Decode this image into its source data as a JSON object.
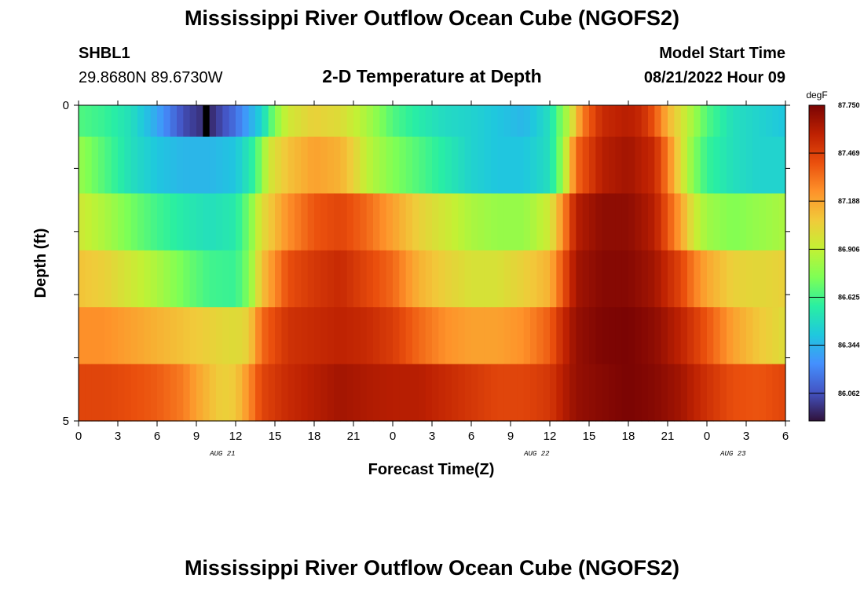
{
  "page": {
    "title": "Mississippi River Outflow Ocean Cube (NGOFS2)",
    "title_repeat": "Mississippi River Outflow Ocean Cube (NGOFS2)",
    "station": {
      "id": "SHBL1",
      "coords": "29.8680N  89.6730W"
    },
    "subtitle": "2-D Temperature at Depth",
    "model_start": {
      "label": "Model Start Time",
      "value": "08/21/2022 Hour 09"
    }
  },
  "chart_data": {
    "type": "heatmap",
    "title": "2-D Temperature at Depth",
    "xlabel": "Forecast Time(Z)",
    "ylabel": "Depth (ft)",
    "x_tick_labels": [
      "0",
      "3",
      "6",
      "9",
      "12",
      "15",
      "18",
      "21",
      "0",
      "3",
      "6",
      "9",
      "12",
      "15",
      "18",
      "21",
      "0",
      "3",
      "6"
    ],
    "x_tick_hours": [
      0,
      3,
      6,
      9,
      12,
      15,
      18,
      21,
      24,
      27,
      30,
      33,
      36,
      39,
      42,
      45,
      48,
      51,
      54
    ],
    "date_labels": [
      {
        "text": "AUG 21",
        "hour": 11
      },
      {
        "text": "AUG 22",
        "hour": 35
      },
      {
        "text": "AUG 23",
        "hour": 50
      }
    ],
    "xlim": [
      0,
      54
    ],
    "y_tick_labels": [
      "0",
      "5"
    ],
    "ylim": [
      0,
      5
    ],
    "colorbar": {
      "unit": "degF",
      "tick_labels": [
        "87.750",
        "87.469",
        "87.188",
        "86.906",
        "86.625",
        "86.344",
        "86.062"
      ],
      "range": [
        85.9,
        87.75
      ],
      "colors": [
        "#30123b",
        "#4454c4",
        "#4490fe",
        "#1fc8de",
        "#29efa2",
        "#7eff55",
        "#c3f134",
        "#f1ca3a",
        "#fe922a",
        "#ea4f0d",
        "#be2102",
        "#7a0403"
      ]
    },
    "depth_layers": [
      {
        "knots": [
          [
            0,
            86.65
          ],
          [
            2,
            86.6
          ],
          [
            4,
            86.5
          ],
          [
            6,
            86.3
          ],
          [
            8,
            86.05
          ],
          [
            10,
            85.95
          ],
          [
            12,
            86.15
          ],
          [
            14,
            86.45
          ],
          [
            15,
            86.75
          ],
          [
            16,
            86.95
          ],
          [
            18,
            87.05
          ],
          [
            20,
            87.0
          ],
          [
            22,
            86.85
          ],
          [
            24,
            86.65
          ],
          [
            26,
            86.55
          ],
          [
            28,
            86.48
          ],
          [
            30,
            86.45
          ],
          [
            32,
            86.4
          ],
          [
            34,
            86.35
          ],
          [
            36,
            86.5
          ],
          [
            37.5,
            86.9
          ],
          [
            38.5,
            87.3
          ],
          [
            40,
            87.55
          ],
          [
            42,
            87.6
          ],
          [
            43,
            87.55
          ],
          [
            44,
            87.4
          ],
          [
            45,
            87.15
          ],
          [
            46.5,
            86.9
          ],
          [
            48,
            86.65
          ],
          [
            50,
            86.5
          ],
          [
            52,
            86.45
          ],
          [
            54,
            86.4
          ]
        ],
        "notch": {
          "hour": 10,
          "value": "missing"
        }
      },
      {
        "knots": [
          [
            0,
            86.8
          ],
          [
            2,
            86.65
          ],
          [
            4,
            86.5
          ],
          [
            6,
            86.4
          ],
          [
            8,
            86.35
          ],
          [
            10,
            86.35
          ],
          [
            12,
            86.4
          ],
          [
            13.5,
            86.6
          ],
          [
            14.5,
            86.95
          ],
          [
            16,
            87.1
          ],
          [
            18,
            87.2
          ],
          [
            20,
            87.15
          ],
          [
            21,
            87.05
          ],
          [
            22,
            86.9
          ],
          [
            24,
            86.75
          ],
          [
            26,
            86.65
          ],
          [
            28,
            86.55
          ],
          [
            30,
            86.45
          ],
          [
            32,
            86.4
          ],
          [
            34,
            86.4
          ],
          [
            36,
            86.5
          ],
          [
            37,
            86.8
          ],
          [
            38,
            87.35
          ],
          [
            40,
            87.6
          ],
          [
            42,
            87.65
          ],
          [
            44,
            87.55
          ],
          [
            45,
            87.3
          ],
          [
            46,
            87.0
          ],
          [
            47,
            86.75
          ],
          [
            48,
            86.6
          ],
          [
            50,
            86.5
          ],
          [
            52,
            86.45
          ],
          [
            54,
            86.45
          ]
        ]
      },
      {
        "knots": [
          [
            0,
            86.95
          ],
          [
            2,
            86.85
          ],
          [
            4,
            86.72
          ],
          [
            6,
            86.62
          ],
          [
            8,
            86.55
          ],
          [
            10,
            86.5
          ],
          [
            12,
            86.55
          ],
          [
            13,
            86.72
          ],
          [
            14,
            87.0
          ],
          [
            16,
            87.25
          ],
          [
            18,
            87.4
          ],
          [
            20,
            87.45
          ],
          [
            22,
            87.35
          ],
          [
            24,
            87.2
          ],
          [
            26,
            87.05
          ],
          [
            28,
            86.95
          ],
          [
            30,
            86.85
          ],
          [
            32,
            86.8
          ],
          [
            34,
            86.8
          ],
          [
            36,
            86.95
          ],
          [
            37,
            87.25
          ],
          [
            38,
            87.6
          ],
          [
            40,
            87.7
          ],
          [
            42,
            87.7
          ],
          [
            44,
            87.6
          ],
          [
            45,
            87.4
          ],
          [
            46,
            87.2
          ],
          [
            47,
            86.95
          ],
          [
            48,
            86.82
          ],
          [
            50,
            86.75
          ],
          [
            52,
            86.8
          ],
          [
            54,
            86.85
          ]
        ]
      },
      {
        "knots": [
          [
            0,
            87.1
          ],
          [
            2,
            87.05
          ],
          [
            4,
            86.95
          ],
          [
            6,
            86.85
          ],
          [
            8,
            86.72
          ],
          [
            10,
            86.62
          ],
          [
            12,
            86.6
          ],
          [
            13,
            86.75
          ],
          [
            14,
            87.1
          ],
          [
            16,
            87.42
          ],
          [
            18,
            87.5
          ],
          [
            20,
            87.55
          ],
          [
            22,
            87.45
          ],
          [
            24,
            87.35
          ],
          [
            26,
            87.15
          ],
          [
            28,
            87.05
          ],
          [
            30,
            86.98
          ],
          [
            32,
            86.98
          ],
          [
            34,
            87.05
          ],
          [
            36,
            87.15
          ],
          [
            37,
            87.4
          ],
          [
            38,
            87.65
          ],
          [
            40,
            87.72
          ],
          [
            42,
            87.72
          ],
          [
            44,
            87.65
          ],
          [
            46,
            87.45
          ],
          [
            47,
            87.3
          ],
          [
            48,
            87.18
          ],
          [
            50,
            87.05
          ],
          [
            52,
            87.02
          ],
          [
            54,
            87.05
          ]
        ]
      },
      {
        "knots": [
          [
            0,
            87.25
          ],
          [
            2,
            87.25
          ],
          [
            4,
            87.2
          ],
          [
            6,
            87.15
          ],
          [
            8,
            87.1
          ],
          [
            10,
            87.05
          ],
          [
            12,
            87.0
          ],
          [
            13,
            87.05
          ],
          [
            14,
            87.35
          ],
          [
            16,
            87.52
          ],
          [
            18,
            87.55
          ],
          [
            20,
            87.58
          ],
          [
            22,
            87.55
          ],
          [
            24,
            87.48
          ],
          [
            26,
            87.35
          ],
          [
            28,
            87.25
          ],
          [
            30,
            87.2
          ],
          [
            32,
            87.2
          ],
          [
            34,
            87.25
          ],
          [
            36,
            87.38
          ],
          [
            37,
            87.55
          ],
          [
            38,
            87.68
          ],
          [
            40,
            87.74
          ],
          [
            42,
            87.75
          ],
          [
            44,
            87.7
          ],
          [
            46,
            87.58
          ],
          [
            48,
            87.4
          ],
          [
            50,
            87.2
          ],
          [
            52,
            87.08
          ],
          [
            54,
            87.0
          ]
        ]
      },
      {
        "knots": [
          [
            0,
            87.45
          ],
          [
            2,
            87.45
          ],
          [
            4,
            87.42
          ],
          [
            6,
            87.38
          ],
          [
            8,
            87.3
          ],
          [
            9,
            87.2
          ],
          [
            10,
            87.12
          ],
          [
            11,
            87.05
          ],
          [
            12,
            87.08
          ],
          [
            13,
            87.25
          ],
          [
            14,
            87.45
          ],
          [
            16,
            87.55
          ],
          [
            18,
            87.6
          ],
          [
            20,
            87.65
          ],
          [
            22,
            87.62
          ],
          [
            24,
            87.6
          ],
          [
            26,
            87.6
          ],
          [
            28,
            87.55
          ],
          [
            30,
            87.5
          ],
          [
            32,
            87.45
          ],
          [
            34,
            87.45
          ],
          [
            36,
            87.5
          ],
          [
            37,
            87.6
          ],
          [
            38,
            87.68
          ],
          [
            40,
            87.72
          ],
          [
            42,
            87.75
          ],
          [
            44,
            87.72
          ],
          [
            46,
            87.65
          ],
          [
            48,
            87.52
          ],
          [
            50,
            87.42
          ],
          [
            52,
            87.4
          ],
          [
            54,
            87.45
          ]
        ]
      }
    ]
  }
}
